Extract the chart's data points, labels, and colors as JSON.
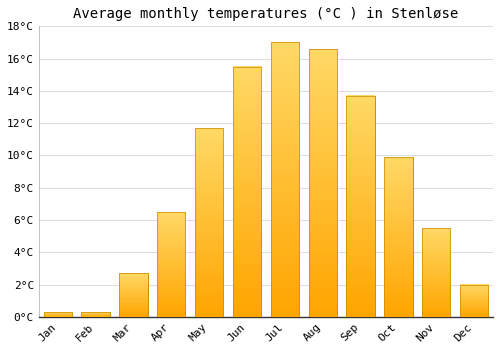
{
  "title": "Average monthly temperatures (°C ) in Stenløse",
  "months": [
    "Jan",
    "Feb",
    "Mar",
    "Apr",
    "May",
    "Jun",
    "Jul",
    "Aug",
    "Sep",
    "Oct",
    "Nov",
    "Dec"
  ],
  "values": [
    0.3,
    0.3,
    2.7,
    6.5,
    11.7,
    15.5,
    17.0,
    16.6,
    13.7,
    9.9,
    5.5,
    2.0
  ],
  "bar_color_top": "#FFD966",
  "bar_color_bottom": "#FFA500",
  "bar_edge_color": "#CC8800",
  "ylim": [
    0,
    18
  ],
  "yticks": [
    0,
    2,
    4,
    6,
    8,
    10,
    12,
    14,
    16,
    18
  ],
  "ytick_labels": [
    "0°C",
    "2°C",
    "4°C",
    "6°C",
    "8°C",
    "10°C",
    "12°C",
    "14°C",
    "16°C",
    "18°C"
  ],
  "background_color": "#ffffff",
  "grid_color": "#dddddd",
  "title_fontsize": 10,
  "tick_fontsize": 8,
  "font_family": "monospace",
  "bar_width": 0.75
}
